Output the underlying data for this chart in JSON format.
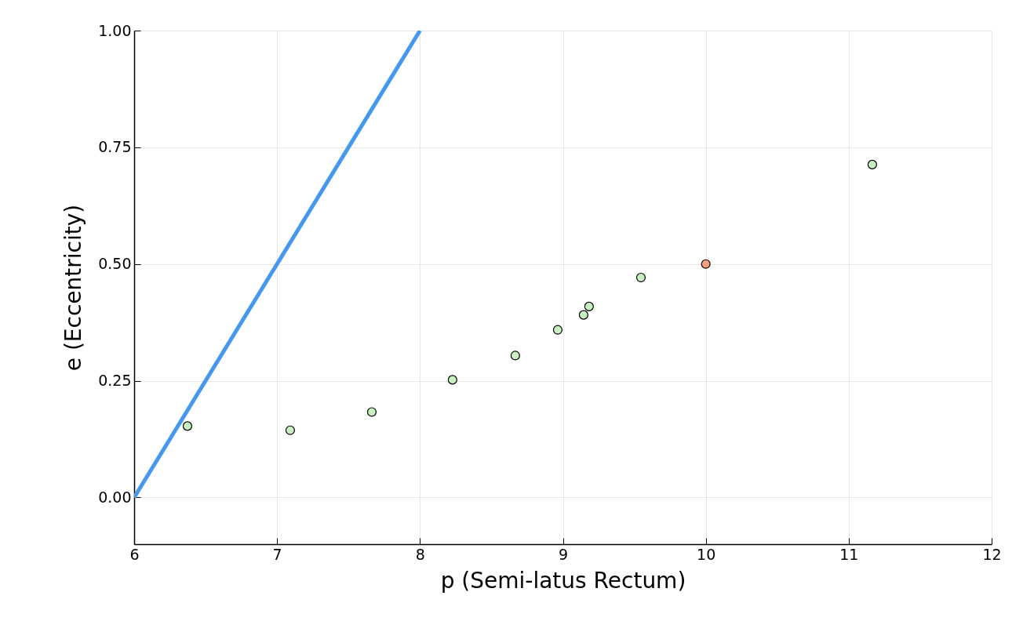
{
  "chart_data": {
    "type": "scatter",
    "xlabel": "p (Semi-latus Rectum)",
    "ylabel": "e (Eccentricity)",
    "xlim": [
      6,
      12
    ],
    "ylim": [
      -0.1,
      1.0
    ],
    "xticks": [
      6,
      7,
      8,
      9,
      10,
      11,
      12
    ],
    "yticks": [
      {
        "value": 0,
        "label": "0.00"
      },
      {
        "value": 0.25,
        "label": "0.25"
      },
      {
        "value": 0.5,
        "label": "0.50"
      },
      0.75,
      {
        "value": 1,
        "label": "1.00"
      }
    ],
    "grid": true,
    "legend": false,
    "marker": "circle",
    "series": [
      {
        "type": "line",
        "marker": "none",
        "color": "#4499ee",
        "x": [
          6,
          8
        ],
        "values": [
          0,
          1
        ]
      },
      {
        "color": "#c8f0c0",
        "x": [
          6.373,
          7.092,
          7.663,
          8.228,
          8.667,
          8.964,
          9.145,
          9.183,
          9.546,
          11.165
        ],
        "values": [
          0.153,
          0.144,
          0.183,
          0.252,
          0.304,
          0.359,
          0.391,
          0.409,
          0.471,
          0.713
        ]
      },
      {
        "color": "#f4a07f",
        "x": [
          10
        ],
        "values": [
          0.5
        ]
      }
    ]
  }
}
